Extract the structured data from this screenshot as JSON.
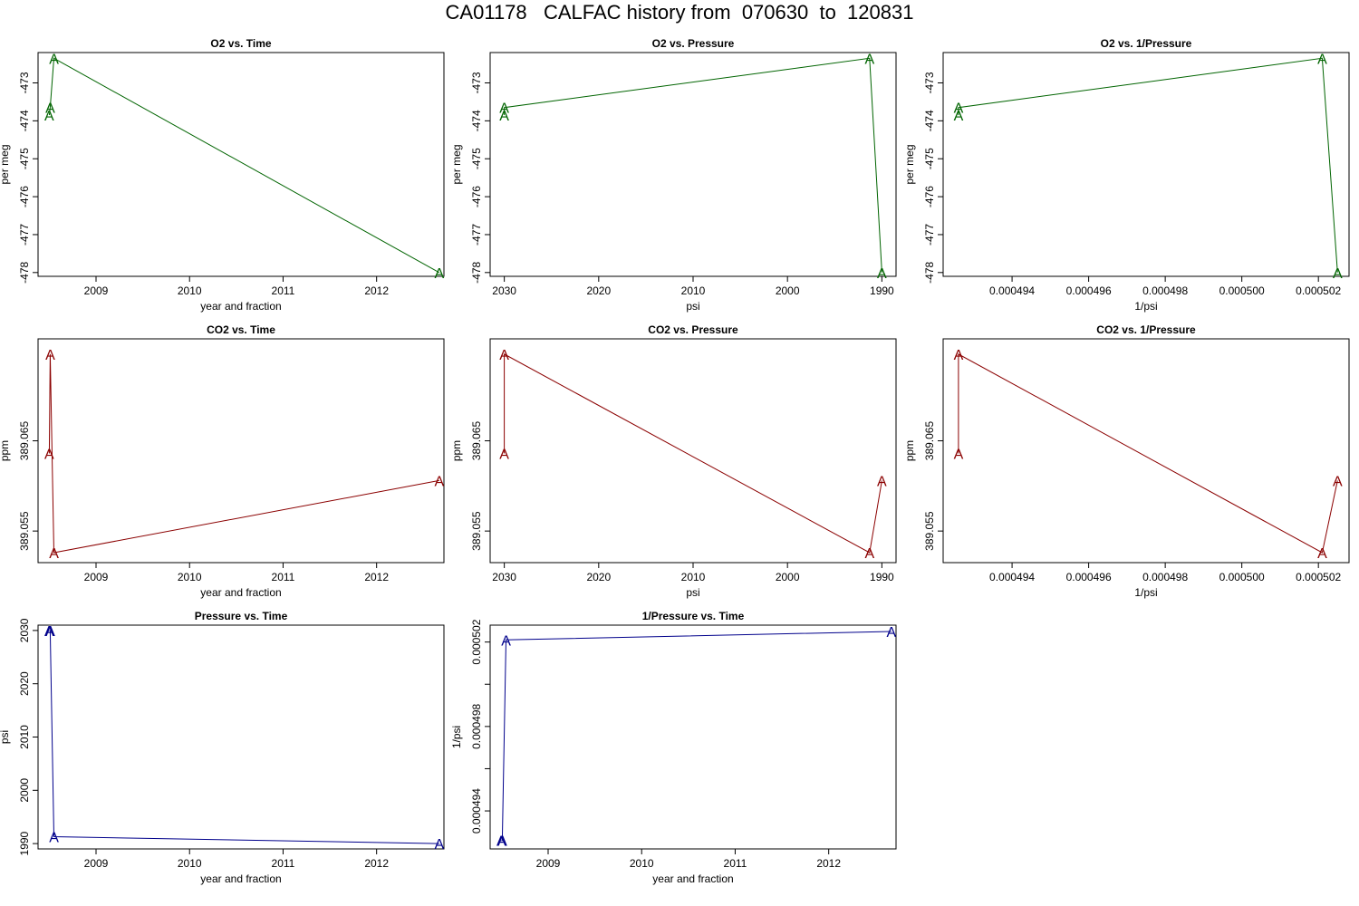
{
  "title": "CA01178   CALFAC history from  070630  to  120831",
  "colors": {
    "o2": "#006400",
    "co2": "#8b0000",
    "pressure": "#00008b"
  },
  "chart_data": [
    {
      "type": "line",
      "marker": "A",
      "color_key": "o2",
      "title": "O2 vs. Time",
      "xlabel": "year and fraction",
      "ylabel": "per meg",
      "xlim": [
        2008.38,
        2012.72
      ],
      "ylim": [
        -478.1,
        -472.2
      ],
      "xticks": [
        2009,
        2010,
        2011,
        2012
      ],
      "yticks": [
        -478,
        -477,
        -476,
        -475,
        -474,
        -473
      ],
      "xticklabels": [
        "2009",
        "2010",
        "2011",
        "2012"
      ],
      "yticklabels": [
        "-478",
        "-477",
        "-476",
        "-475",
        "-474",
        "-473"
      ],
      "x": [
        2008.5,
        2008.51,
        2008.55,
        2012.67
      ],
      "y": [
        -473.85,
        -473.65,
        -472.35,
        -478.0
      ]
    },
    {
      "type": "line",
      "marker": "A",
      "color_key": "o2",
      "title": "O2 vs. Pressure",
      "xlabel": "psi",
      "ylabel": "per meg",
      "xlim": [
        2031.5,
        1988.5
      ],
      "ylim": [
        -478.1,
        -472.2
      ],
      "xticks": [
        2030,
        2020,
        2010,
        2000,
        1990
      ],
      "yticks": [
        -478,
        -477,
        -476,
        -475,
        -474,
        -473
      ],
      "xticklabels": [
        "2030",
        "2020",
        "2010",
        "2000",
        "1990"
      ],
      "yticklabels": [
        "-478",
        "-477",
        "-476",
        "-475",
        "-474",
        "-473"
      ],
      "x": [
        2030,
        2030,
        1991.3,
        1990.0
      ],
      "y": [
        -473.85,
        -473.65,
        -472.35,
        -478.0
      ]
    },
    {
      "type": "line",
      "marker": "A",
      "color_key": "o2",
      "title": "O2 vs. 1/Pressure",
      "xlabel": "1/psi",
      "ylabel": "per meg",
      "xlim": [
        0.0004922,
        0.0005028
      ],
      "ylim": [
        -478.1,
        -472.2
      ],
      "xticks": [
        0.000494,
        0.000496,
        0.000498,
        0.0005,
        0.000502
      ],
      "yticks": [
        -478,
        -477,
        -476,
        -475,
        -474,
        -473
      ],
      "xticklabels": [
        "0.000494",
        "0.000496",
        "0.000498",
        "0.000500",
        "0.000502"
      ],
      "yticklabels": [
        "-478",
        "-477",
        "-476",
        "-475",
        "-474",
        "-473"
      ],
      "x": [
        0.0004926,
        0.0004926,
        0.0005021,
        0.0005025
      ],
      "y": [
        -473.85,
        -473.65,
        -472.35,
        -478.0
      ]
    },
    {
      "type": "line",
      "marker": "A",
      "color_key": "co2",
      "title": "CO2 vs. Time",
      "xlabel": "year and fraction",
      "ylabel": "ppm",
      "xlim": [
        2008.38,
        2012.72
      ],
      "ylim": [
        389.0515,
        389.0763
      ],
      "xticks": [
        2009,
        2010,
        2011,
        2012
      ],
      "yticks": [
        389.055,
        389.065
      ],
      "xticklabels": [
        "2009",
        "2010",
        "2011",
        "2012"
      ],
      "yticklabels": [
        "389.055",
        "389.065"
      ],
      "x": [
        2008.5,
        2008.51,
        2008.55,
        2012.67
      ],
      "y": [
        389.0636,
        389.0746,
        389.0526,
        389.0606
      ]
    },
    {
      "type": "line",
      "marker": "A",
      "color_key": "co2",
      "title": "CO2 vs. Pressure",
      "xlabel": "psi",
      "ylabel": "ppm",
      "xlim": [
        2031.5,
        1988.5
      ],
      "ylim": [
        389.0515,
        389.0763
      ],
      "xticks": [
        2030,
        2020,
        2010,
        2000,
        1990
      ],
      "yticks": [
        389.055,
        389.065
      ],
      "xticklabels": [
        "2030",
        "2020",
        "2010",
        "2000",
        "1990"
      ],
      "yticklabels": [
        "389.055",
        "389.065"
      ],
      "x": [
        2030,
        2030,
        1991.3,
        1990.0
      ],
      "y": [
        389.0636,
        389.0746,
        389.0526,
        389.0606
      ]
    },
    {
      "type": "line",
      "marker": "A",
      "color_key": "co2",
      "title": "CO2 vs. 1/Pressure",
      "xlabel": "1/psi",
      "ylabel": "ppm",
      "xlim": [
        0.0004922,
        0.0005028
      ],
      "ylim": [
        389.0515,
        389.0763
      ],
      "xticks": [
        0.000494,
        0.000496,
        0.000498,
        0.0005,
        0.000502
      ],
      "yticks": [
        389.055,
        389.065
      ],
      "xticklabels": [
        "0.000494",
        "0.000496",
        "0.000498",
        "0.000500",
        "0.000502"
      ],
      "yticklabels": [
        "389.055",
        "389.065"
      ],
      "x": [
        0.0004926,
        0.0004926,
        0.0005021,
        0.0005025
      ],
      "y": [
        389.0636,
        389.0746,
        389.0526,
        389.0606
      ]
    },
    {
      "type": "line",
      "marker": "A",
      "color_key": "pressure",
      "title": "Pressure vs. Time",
      "xlabel": "year and fraction",
      "ylabel": "psi",
      "xlim": [
        2008.38,
        2012.72
      ],
      "ylim": [
        1989.0,
        2031.0
      ],
      "xticks": [
        2009,
        2010,
        2011,
        2012
      ],
      "yticks": [
        1990,
        2000,
        2010,
        2020,
        2030
      ],
      "xticklabels": [
        "2009",
        "2010",
        "2011",
        "2012"
      ],
      "yticklabels": [
        "1990",
        "2000",
        "2010",
        "2020",
        "2030"
      ],
      "x": [
        2008.5,
        2008.51,
        2008.55,
        2012.67
      ],
      "y": [
        2030,
        2030,
        1991.3,
        1990.0
      ]
    },
    {
      "type": "line",
      "marker": "A",
      "color_key": "pressure",
      "title": "1/Pressure vs. Time",
      "xlabel": "year and fraction",
      "ylabel": "1/psi",
      "xlim": [
        2008.38,
        2012.72
      ],
      "ylim": [
        0.0004922,
        0.0005028
      ],
      "xticks": [
        2009,
        2010,
        2011,
        2012
      ],
      "yticks": [
        0.000494,
        0.000498,
        0.000502
      ],
      "xticklabels": [
        "2009",
        "2010",
        "2011",
        "2012"
      ],
      "yticklabels": [
        "0.000494",
        "0.000498",
        "0.000502"
      ],
      "minor_yticks": [
        0.000496,
        0.0005
      ],
      "x": [
        2008.5,
        2008.51,
        2008.55,
        2012.67
      ],
      "y": [
        0.0004926,
        0.0004926,
        0.0005021,
        0.0005025
      ]
    }
  ]
}
